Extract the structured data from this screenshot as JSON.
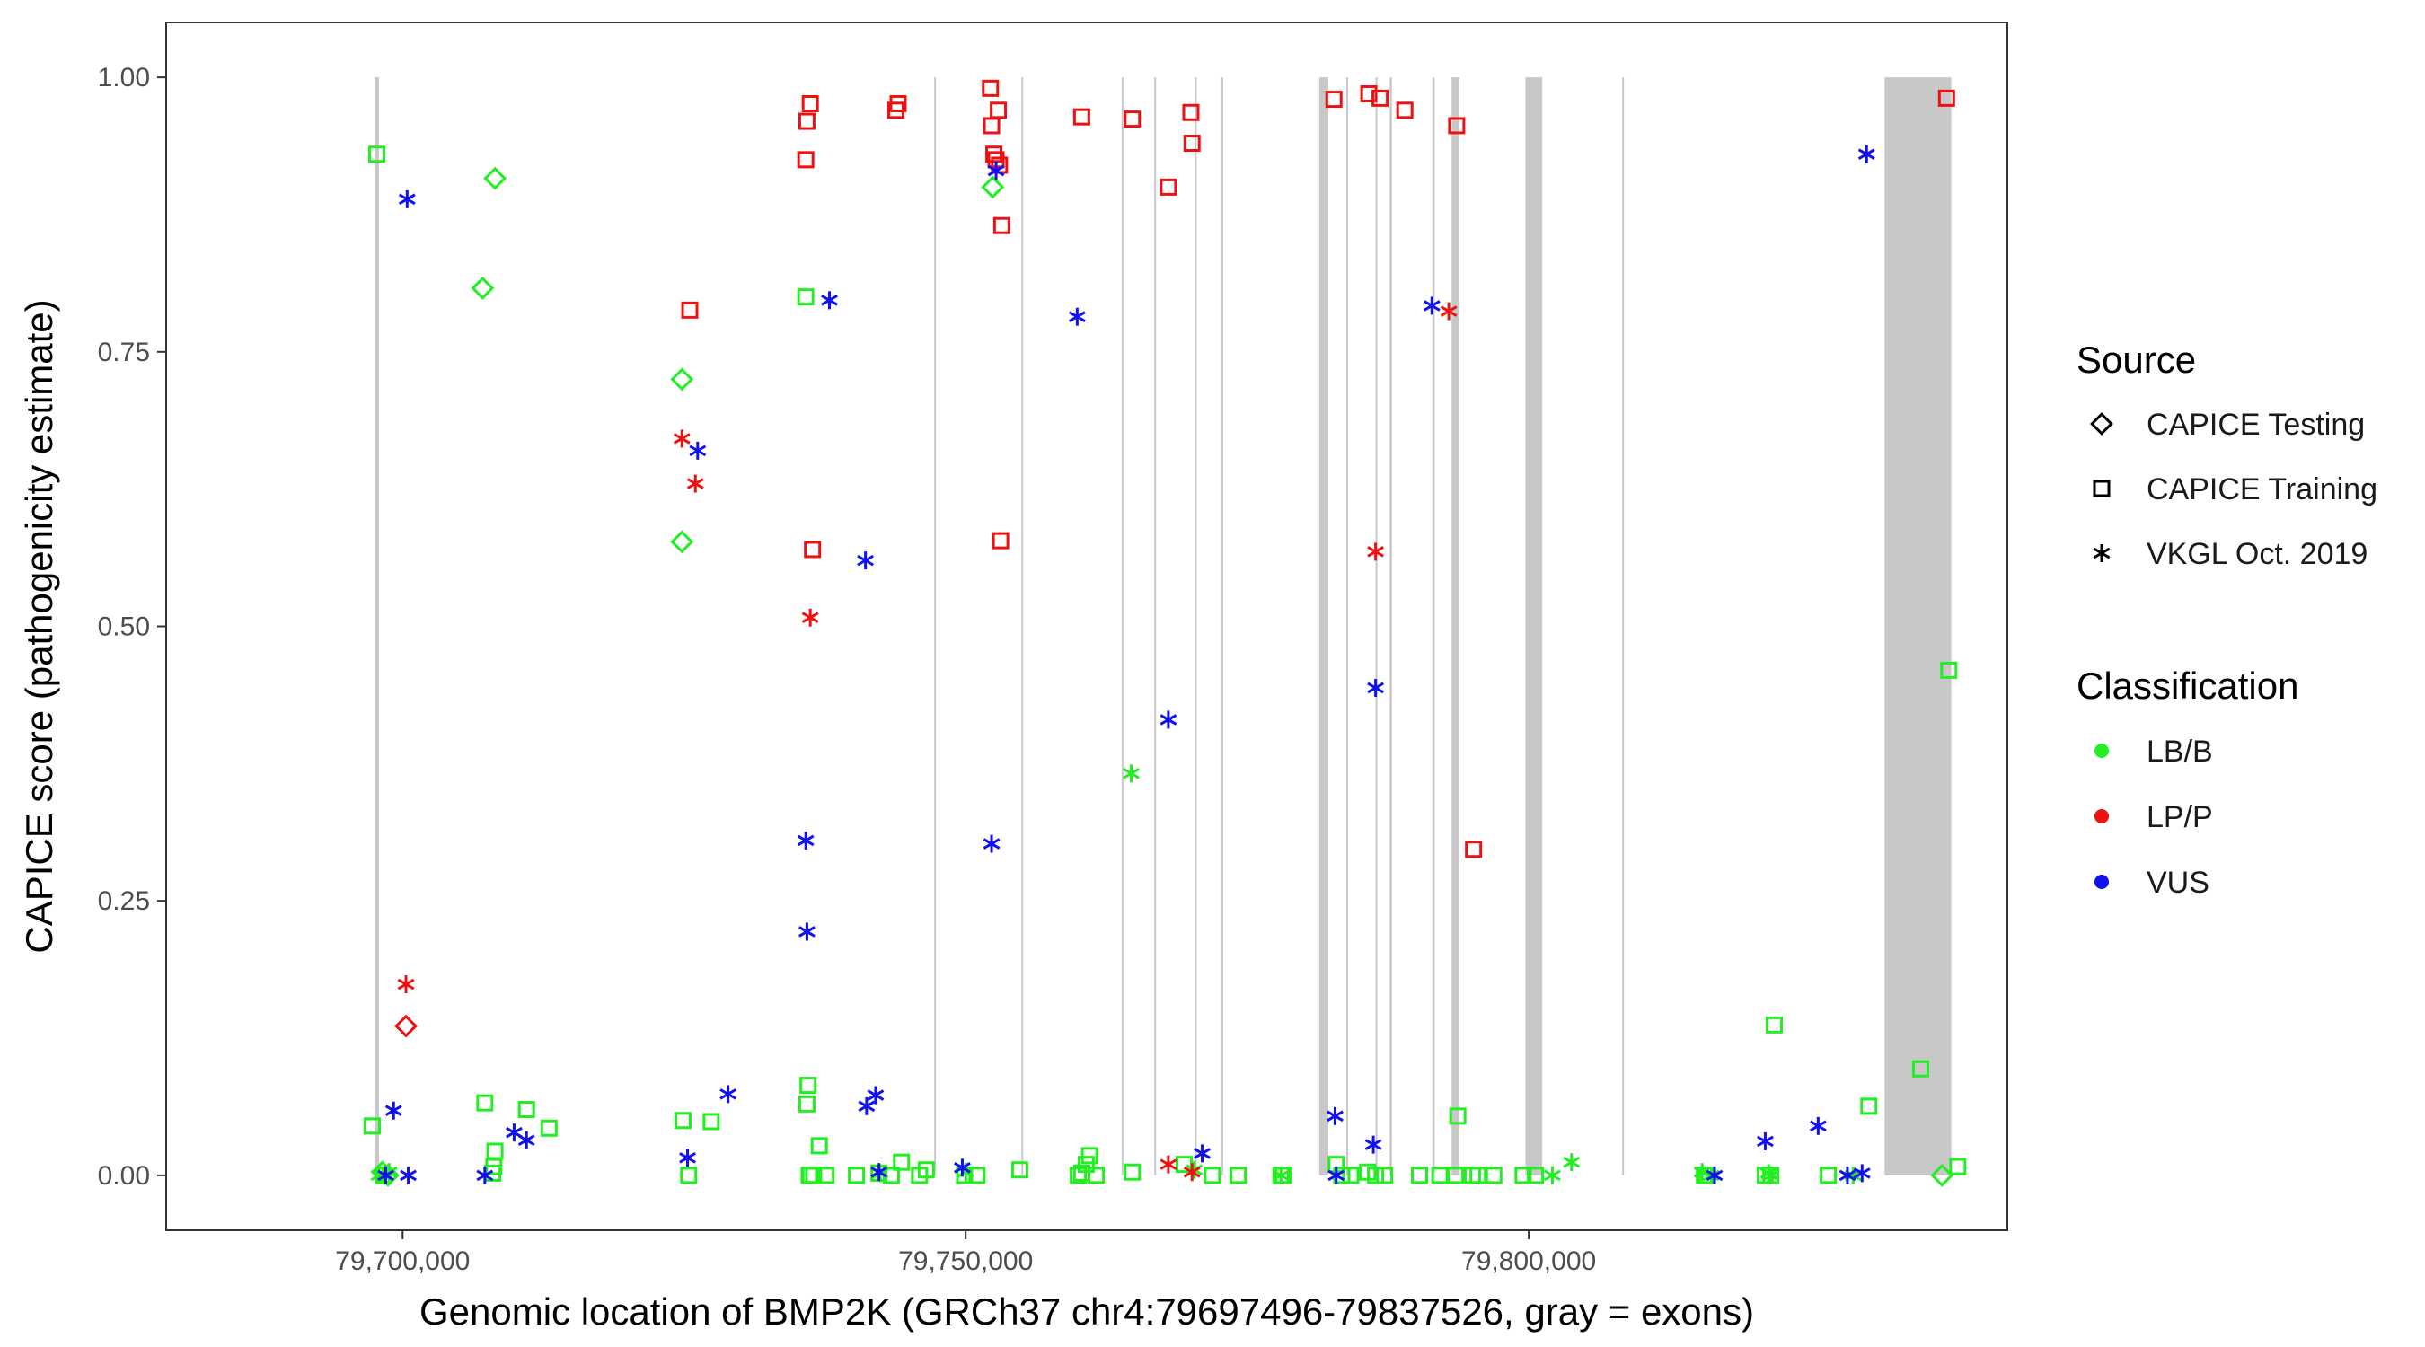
{
  "chart_data": {
    "type": "scatter",
    "xlabel": "Genomic location of BMP2K (GRCh37 chr4:79697496-79837526, gray = exons)",
    "ylabel": "CAPICE score (pathogenicity estimate)",
    "xlim": [
      79679000,
      79842500
    ],
    "ylim": [
      -0.05,
      1.05
    ],
    "x_ticks": [
      79700000,
      79750000,
      79800000
    ],
    "x_tick_labels": [
      "79,700,000",
      "79,750,000",
      "79,800,000"
    ],
    "y_ticks": [
      0,
      0.25,
      0.5,
      0.75,
      1.0
    ],
    "y_tick_labels": [
      "0.00",
      "0.25",
      "0.50",
      "0.75",
      "1.00"
    ],
    "grid": false,
    "exons_color": "#c8c8c8",
    "exons": [
      [
        79697496,
        79697900
      ],
      [
        79747200,
        79747350
      ],
      [
        79754950,
        79755100
      ],
      [
        79763850,
        79764000
      ],
      [
        79766750,
        79766900
      ],
      [
        79770350,
        79770500
      ],
      [
        79772700,
        79772850
      ],
      [
        79781400,
        79782200
      ],
      [
        79783800,
        79783950
      ],
      [
        79786400,
        79786550
      ],
      [
        79787650,
        79787850
      ],
      [
        79791450,
        79791650
      ],
      [
        79793150,
        79793850
      ],
      [
        79799700,
        79801200
      ],
      [
        79808300,
        79808450
      ],
      [
        79831600,
        79837526
      ]
    ],
    "legend": {
      "position": "right",
      "source_title": "Source",
      "source_entries": [
        {
          "label": "CAPICE Testing",
          "shape": "diamond"
        },
        {
          "label": "CAPICE Training",
          "shape": "square"
        },
        {
          "label": "VKGL Oct. 2019",
          "shape": "asterisk"
        }
      ],
      "class_title": "Classification",
      "class_entries": [
        {
          "label": "LB/B",
          "color": "#22ee22"
        },
        {
          "label": "LP/P",
          "color": "#ee1111"
        },
        {
          "label": "VUS",
          "color": "#1111ee"
        }
      ]
    },
    "series": [
      {
        "source": "CAPICE Testing",
        "classification": "LB/B",
        "x": [
          79698200,
          79698700,
          79707100,
          79708200,
          79724800,
          79724800,
          79752400,
          79836700
        ],
        "y": [
          0.003,
          0.0,
          0.808,
          0.908,
          0.725,
          0.577,
          0.9,
          0.0
        ]
      },
      {
        "source": "CAPICE Testing",
        "classification": "LP/P",
        "x": [
          79700300
        ],
        "y": [
          0.136
        ]
      },
      {
        "source": "CAPICE Training",
        "classification": "LB/B",
        "x": [
          79697700,
          79697300,
          79698300,
          79707300,
          79708000,
          79708100,
          79708200,
          79711000,
          79713000,
          79724900,
          79725400,
          79727400,
          79735800,
          79735900,
          79736100,
          79736200,
          79736000,
          79736500,
          79737000,
          79737600,
          79740300,
          79742300,
          79743400,
          79744300,
          79745900,
          79746500,
          79749900,
          79751000,
          79754800,
          79760000,
          79760300,
          79760700,
          79761000,
          79761600,
          79764800,
          79769400,
          79771900,
          79774200,
          79778000,
          79778200,
          79782900,
          79783400,
          79784200,
          79785700,
          79786400,
          79787200,
          79790300,
          79792100,
          79793500,
          79793700,
          79795000,
          79795500,
          79796900,
          79799500,
          79800600,
          79815600,
          79815800,
          79821000,
          79821500,
          79821800,
          79826600,
          79830200,
          79834800,
          79837300,
          79838100
        ],
        "y": [
          0.93,
          0.045,
          0.0,
          0.066,
          0.002,
          0.008,
          0.022,
          0.06,
          0.043,
          0.05,
          0.0,
          0.049,
          0.8,
          0.065,
          0.0,
          0.0,
          0.082,
          0.0,
          0.027,
          0.0,
          0.0,
          0.002,
          0.0,
          0.012,
          0.0,
          0.005,
          0.0,
          0.0,
          0.005,
          0.0,
          0.002,
          0.01,
          0.018,
          0.0,
          0.003,
          0.01,
          0.0,
          0.0,
          0.0,
          0.0,
          0.01,
          0.0,
          0.0,
          0.003,
          0.0,
          0.0,
          0.0,
          0.0,
          0.0,
          0.054,
          0.0,
          0.0,
          0.0,
          0.0,
          0.0,
          0.0,
          0.0,
          0.0,
          0.0,
          0.137,
          0.0,
          0.063,
          0.097,
          0.46,
          0.008
        ]
      },
      {
        "source": "CAPICE Training",
        "classification": "LP/P",
        "x": [
          79725500,
          79735800,
          79735900,
          79736200,
          79736400,
          79743800,
          79744000,
          79752200,
          79752300,
          79752500,
          79752700,
          79752900,
          79753000,
          79753200,
          79753100,
          79760300,
          79764800,
          79768000,
          79770000,
          79770100,
          79782700,
          79785800,
          79786800,
          79789000,
          79793600,
          79795100,
          79837100
        ],
        "y": [
          0.788,
          0.925,
          0.96,
          0.976,
          0.57,
          0.97,
          0.976,
          0.99,
          0.956,
          0.93,
          0.925,
          0.97,
          0.92,
          0.865,
          0.578,
          0.964,
          0.962,
          0.9,
          0.968,
          0.94,
          0.98,
          0.985,
          0.981,
          0.97,
          0.956,
          0.297,
          0.981
        ]
      },
      {
        "source": "VKGL Oct. 2019",
        "classification": "LB/B",
        "x": [
          79697900,
          79698800,
          79742400,
          79750000,
          79764700,
          79770300,
          79778000,
          79802100,
          79803800,
          79815400,
          79816200,
          79821300,
          79821500,
          79828800
        ],
        "y": [
          0.0,
          0.003,
          0.002,
          0.003,
          0.366,
          0.005,
          0.0,
          0.0,
          0.012,
          0.003,
          0.0,
          0.002,
          0.0,
          0.0
        ]
      },
      {
        "source": "VKGL Oct. 2019",
        "classification": "LP/P",
        "x": [
          79700300,
          79724800,
          79726000,
          79736200,
          79768000,
          79770100,
          79786400,
          79792900
        ],
        "y": [
          0.174,
          0.671,
          0.63,
          0.508,
          0.01,
          0.003,
          0.568,
          0.787
        ]
      },
      {
        "source": "VKGL Oct. 2019",
        "classification": "VUS",
        "x": [
          79699200,
          79700400,
          79698500,
          79700500,
          79707300,
          79709900,
          79711000,
          79725300,
          79726200,
          79728900,
          79735800,
          79735900,
          79737900,
          79741100,
          79741200,
          79742000,
          79742300,
          79749700,
          79752300,
          79752700,
          79759900,
          79768000,
          79771000,
          79782800,
          79782900,
          79786200,
          79786400,
          79791400,
          79816500,
          79821000,
          79825700,
          79828300,
          79829600,
          79830000
        ],
        "y": [
          0.059,
          0.889,
          0.0,
          0.0,
          0.0,
          0.039,
          0.032,
          0.016,
          0.66,
          0.074,
          0.305,
          0.222,
          0.797,
          0.56,
          0.063,
          0.073,
          0.003,
          0.007,
          0.302,
          0.915,
          0.782,
          0.415,
          0.02,
          0.054,
          0.0,
          0.028,
          0.444,
          0.792,
          0.0,
          0.031,
          0.045,
          0.0,
          0.002,
          0.93
        ]
      }
    ]
  }
}
